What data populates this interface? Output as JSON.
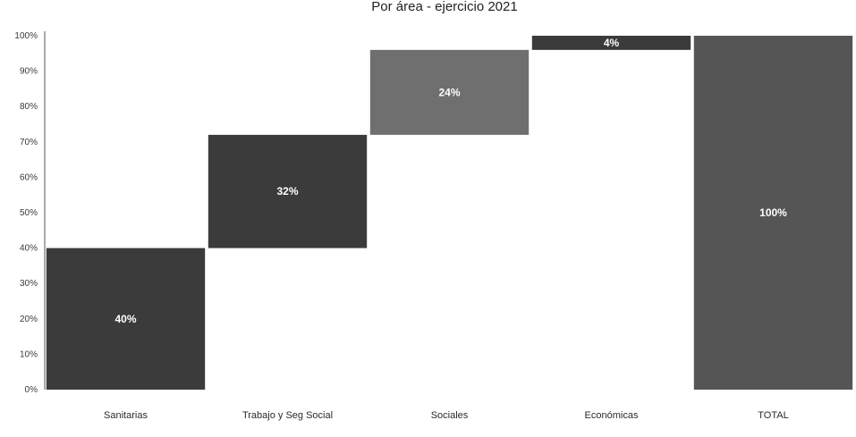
{
  "chart_data": {
    "type": "bar",
    "subtype": "waterfall",
    "title": "Por área - ejercicio 2021",
    "categories": [
      "Sanitarias",
      "Trabajo y Seg Social",
      "Sociales",
      "Económicas",
      "TOTAL"
    ],
    "series": [
      {
        "values": [
          40,
          32,
          24,
          4,
          100
        ],
        "labels": [
          "40%",
          "32%",
          "24%",
          "4%",
          "100%"
        ],
        "bases": [
          0,
          40,
          72,
          96,
          0
        ]
      }
    ],
    "yticks": [
      "0%",
      "10%",
      "20%",
      "30%",
      "40%",
      "50%",
      "60%",
      "70%",
      "80%",
      "90%",
      "100%"
    ],
    "ylim": [
      0,
      100
    ],
    "xlabel": "",
    "ylabel": "",
    "grid": false,
    "legend": "none",
    "colors": [
      "#3b3b3b",
      "#3b3b3b",
      "#6f6f6f",
      "#3b3b3b",
      "#555555"
    ]
  }
}
